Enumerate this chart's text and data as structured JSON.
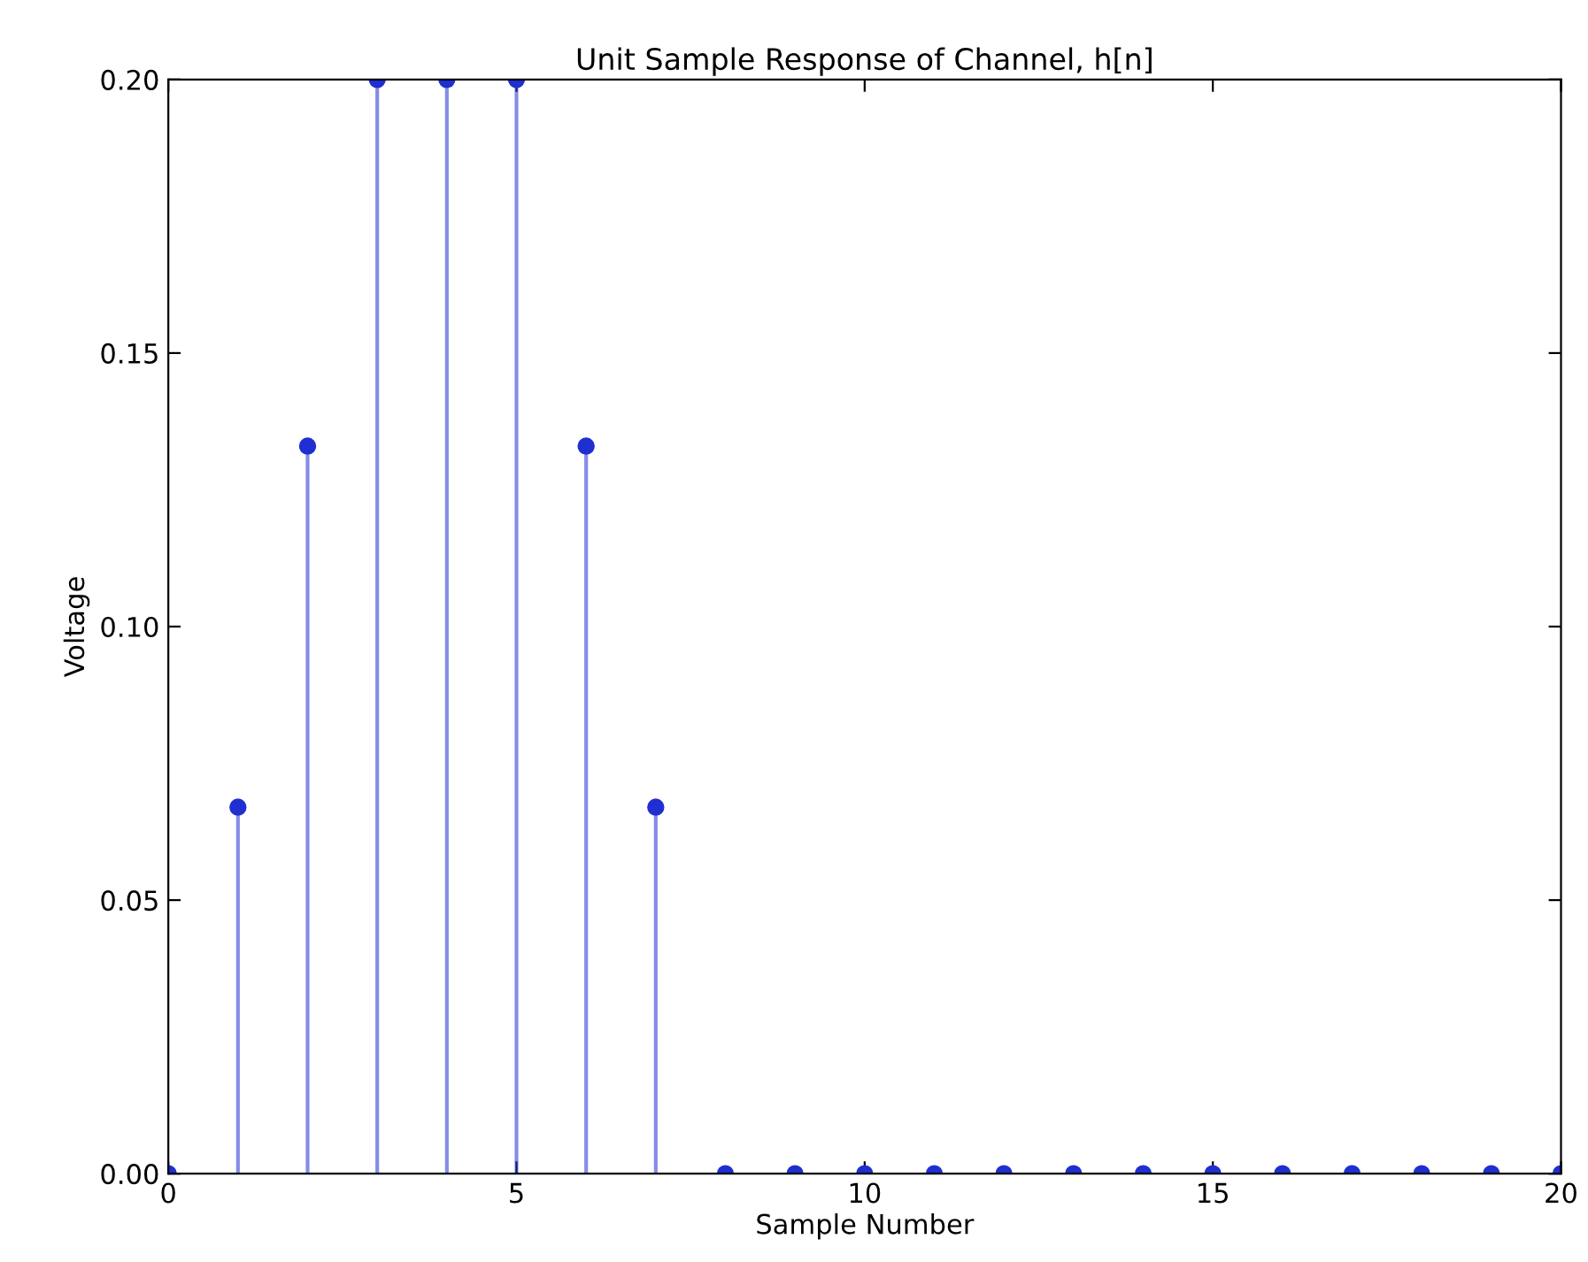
{
  "chart_data": {
    "type": "lollipop",
    "title": "Unit Sample Response of Channel, h[n]",
    "xlabel": "Sample Number",
    "ylabel": "Voltage",
    "x": [
      0,
      1,
      2,
      3,
      4,
      5,
      6,
      7,
      8,
      9,
      10,
      11,
      12,
      13,
      14,
      15,
      16,
      17,
      18,
      19,
      20
    ],
    "series": [
      {
        "color": "#1f2fd0",
        "values": [
          0,
          0.067,
          0.133,
          0.2,
          0.2,
          0.2,
          0.133,
          0.067,
          0,
          0,
          0,
          0,
          0,
          0,
          0,
          0,
          0,
          0,
          0,
          0,
          0
        ]
      }
    ],
    "xlim": [
      0,
      20
    ],
    "xticks": [
      0,
      5,
      10,
      15,
      20
    ],
    "ylim": [
      0,
      0.2
    ],
    "yticks": [
      {
        "value": 0,
        "label": "0.00"
      },
      {
        "value": 0.05,
        "label": "0.05"
      },
      {
        "value": 0.1,
        "label": "0.10"
      },
      {
        "value": 0.15,
        "label": "0.15"
      },
      {
        "value": 0.2,
        "label": "0.20"
      }
    ],
    "marker": "circle",
    "grid": false,
    "legend": false
  }
}
